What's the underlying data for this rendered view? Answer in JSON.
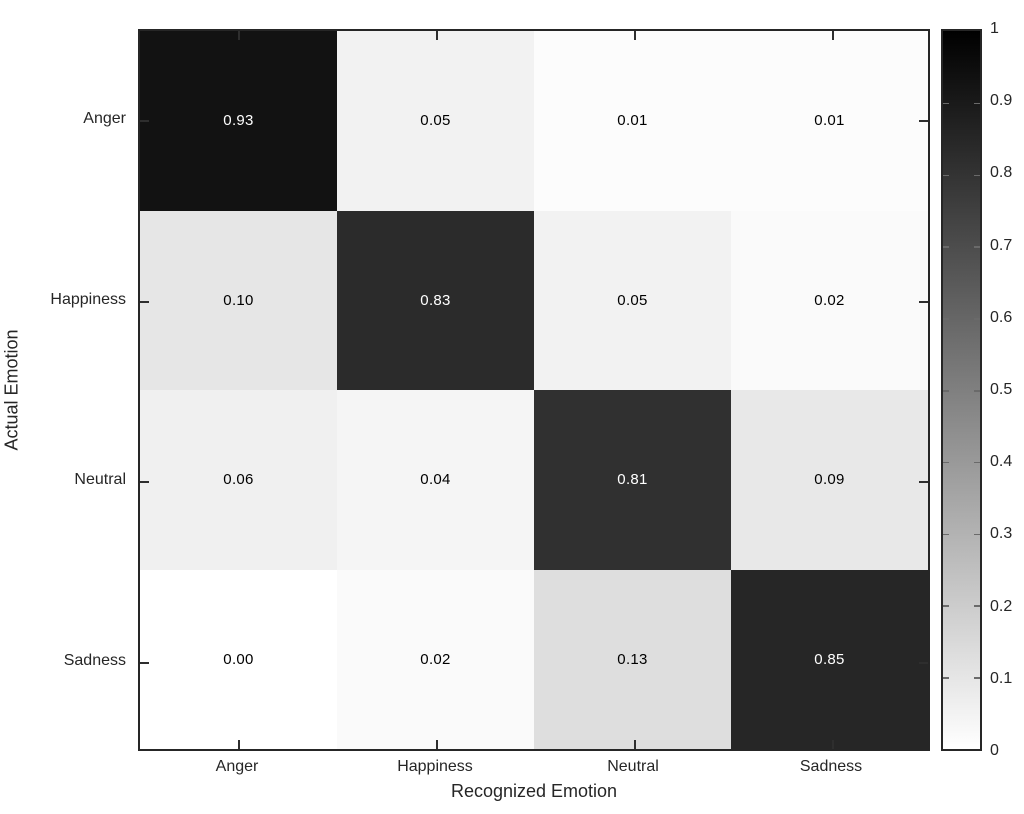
{
  "chart_data": {
    "type": "heatmap",
    "title": "",
    "xlabel": "Recognized Emotion",
    "ylabel": "Actual Emotion",
    "col_labels": [
      "Anger",
      "Happiness",
      "Neutral",
      "Sadness"
    ],
    "row_labels": [
      "Anger",
      "Happiness",
      "Neutral",
      "Sadness"
    ],
    "matrix": [
      [
        0.93,
        0.05,
        0.01,
        0.01
      ],
      [
        0.1,
        0.83,
        0.05,
        0.02
      ],
      [
        0.06,
        0.04,
        0.81,
        0.09
      ],
      [
        0.0,
        0.02,
        0.13,
        0.85
      ]
    ],
    "cell_text": [
      [
        "0.93",
        "0.05",
        "0.01",
        "0.01"
      ],
      [
        "0.10",
        "0.83",
        "0.05",
        "0.02"
      ],
      [
        "0.06",
        "0.04",
        "0.81",
        "0.09"
      ],
      [
        "0.00",
        "0.02",
        "0.13",
        "0.85"
      ]
    ],
    "value_range": [
      0,
      1
    ],
    "colormap": "gray-reversed (1 = black, 0 = white)",
    "grid": false,
    "legend_position": "colorbar-right",
    "colorbar": {
      "tick_labels": [
        "1",
        "0.9",
        "0.8",
        "0.7",
        "0.6",
        "0.5",
        "0.4",
        "0.3",
        "0.2",
        "0.1",
        "0"
      ],
      "tick_values": [
        1,
        0.9,
        0.8,
        0.7,
        0.6,
        0.5,
        0.4,
        0.3,
        0.2,
        0.1,
        0
      ],
      "top_color": "#000000",
      "bottom_color": "#ffffff"
    },
    "colors": {
      "axis": "#262626",
      "tick": "#2e2e2e",
      "text_on_dark": "#ffffff",
      "text_on_light": "#000000",
      "background": "#ffffff"
    }
  }
}
